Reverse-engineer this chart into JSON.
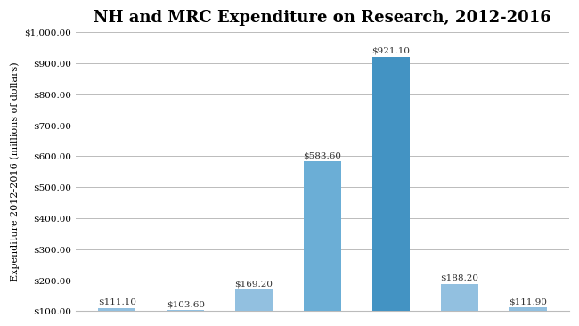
{
  "title": "NH and MRC Expenditure on Research, 2012-2016",
  "ylabel": "Expenditure 2012-2016 (millions of dollars)",
  "categories": [
    "",
    "",
    "",
    "",
    "",
    "",
    ""
  ],
  "values": [
    111.1,
    103.6,
    169.2,
    583.6,
    921.1,
    188.2,
    111.9
  ],
  "bar_colors": [
    "#92C0E0",
    "#92C0E0",
    "#92C0E0",
    "#6BAED6",
    "#4393C3",
    "#92C0E0",
    "#92C0E0"
  ],
  "labels": [
    "$111.10",
    "$103.60",
    "$169.20",
    "$583.60",
    "$921.10",
    "$188.20",
    "$111.90"
  ],
  "ylim": [
    100,
    1000
  ],
  "yticks": [
    100,
    200,
    300,
    400,
    500,
    600,
    700,
    800,
    900,
    1000
  ],
  "background_color": "#FFFFFF",
  "grid_color": "#BBBBBB",
  "title_fontsize": 13,
  "label_fontsize": 7.5,
  "ylabel_fontsize": 8
}
